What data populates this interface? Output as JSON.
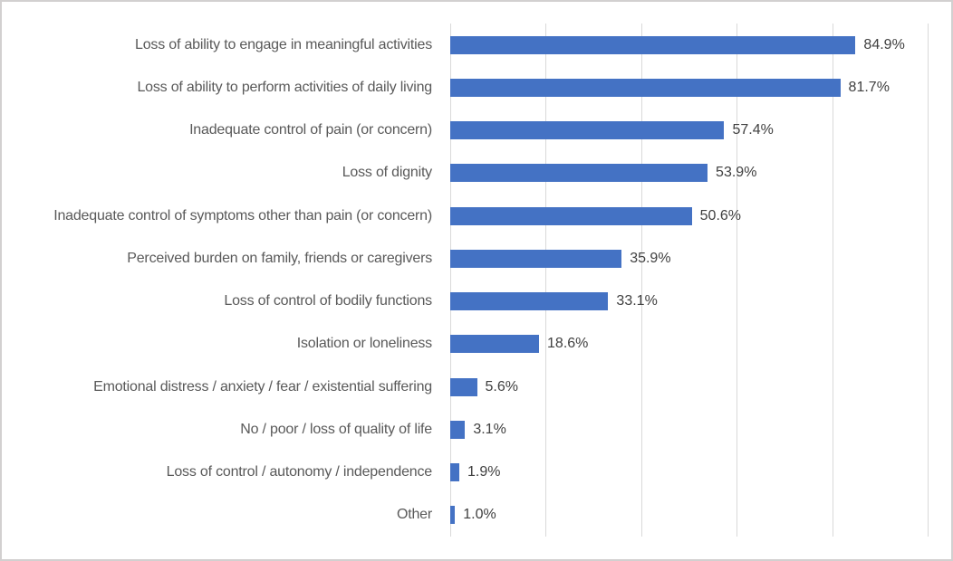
{
  "chart_data": {
    "type": "bar",
    "orientation": "horizontal",
    "title": "",
    "xlabel": "",
    "ylabel": "",
    "categories": [
      "Loss of ability to engage in meaningful activities",
      "Loss of ability to perform activities of daily living",
      "Inadequate control of pain (or concern)",
      "Loss of dignity",
      "Inadequate control of symptoms other than pain (or concern)",
      "Perceived burden on family, friends or caregivers",
      "Loss of control of bodily functions",
      "Isolation or loneliness",
      "Emotional distress / anxiety / fear / existential suffering",
      "No / poor / loss of quality of life",
      "Loss of control / autonomy / independence",
      "Other"
    ],
    "values": [
      84.9,
      81.7,
      57.4,
      53.9,
      50.6,
      35.9,
      33.1,
      18.6,
      5.6,
      3.1,
      1.9,
      1.0
    ],
    "data_labels": [
      "84.9%",
      "81.7%",
      "57.4%",
      "53.9%",
      "50.6%",
      "35.9%",
      "33.1%",
      "18.6%",
      "5.6%",
      "3.1%",
      "1.9%",
      "1.0%"
    ],
    "xlim": [
      0,
      100
    ],
    "gridline_ticks_pct": [
      0,
      20,
      40,
      60,
      80,
      100
    ],
    "grid": "vertical-gridlines-on",
    "legend": "none",
    "axis_tick_labels_shown": false,
    "colors": {
      "bar": "#4472C4",
      "gridline": "#D9D9D9",
      "category_text": "#595959",
      "value_text": "#404040",
      "background": "#FFFFFF",
      "frame_border": "#D2D0D0"
    }
  }
}
